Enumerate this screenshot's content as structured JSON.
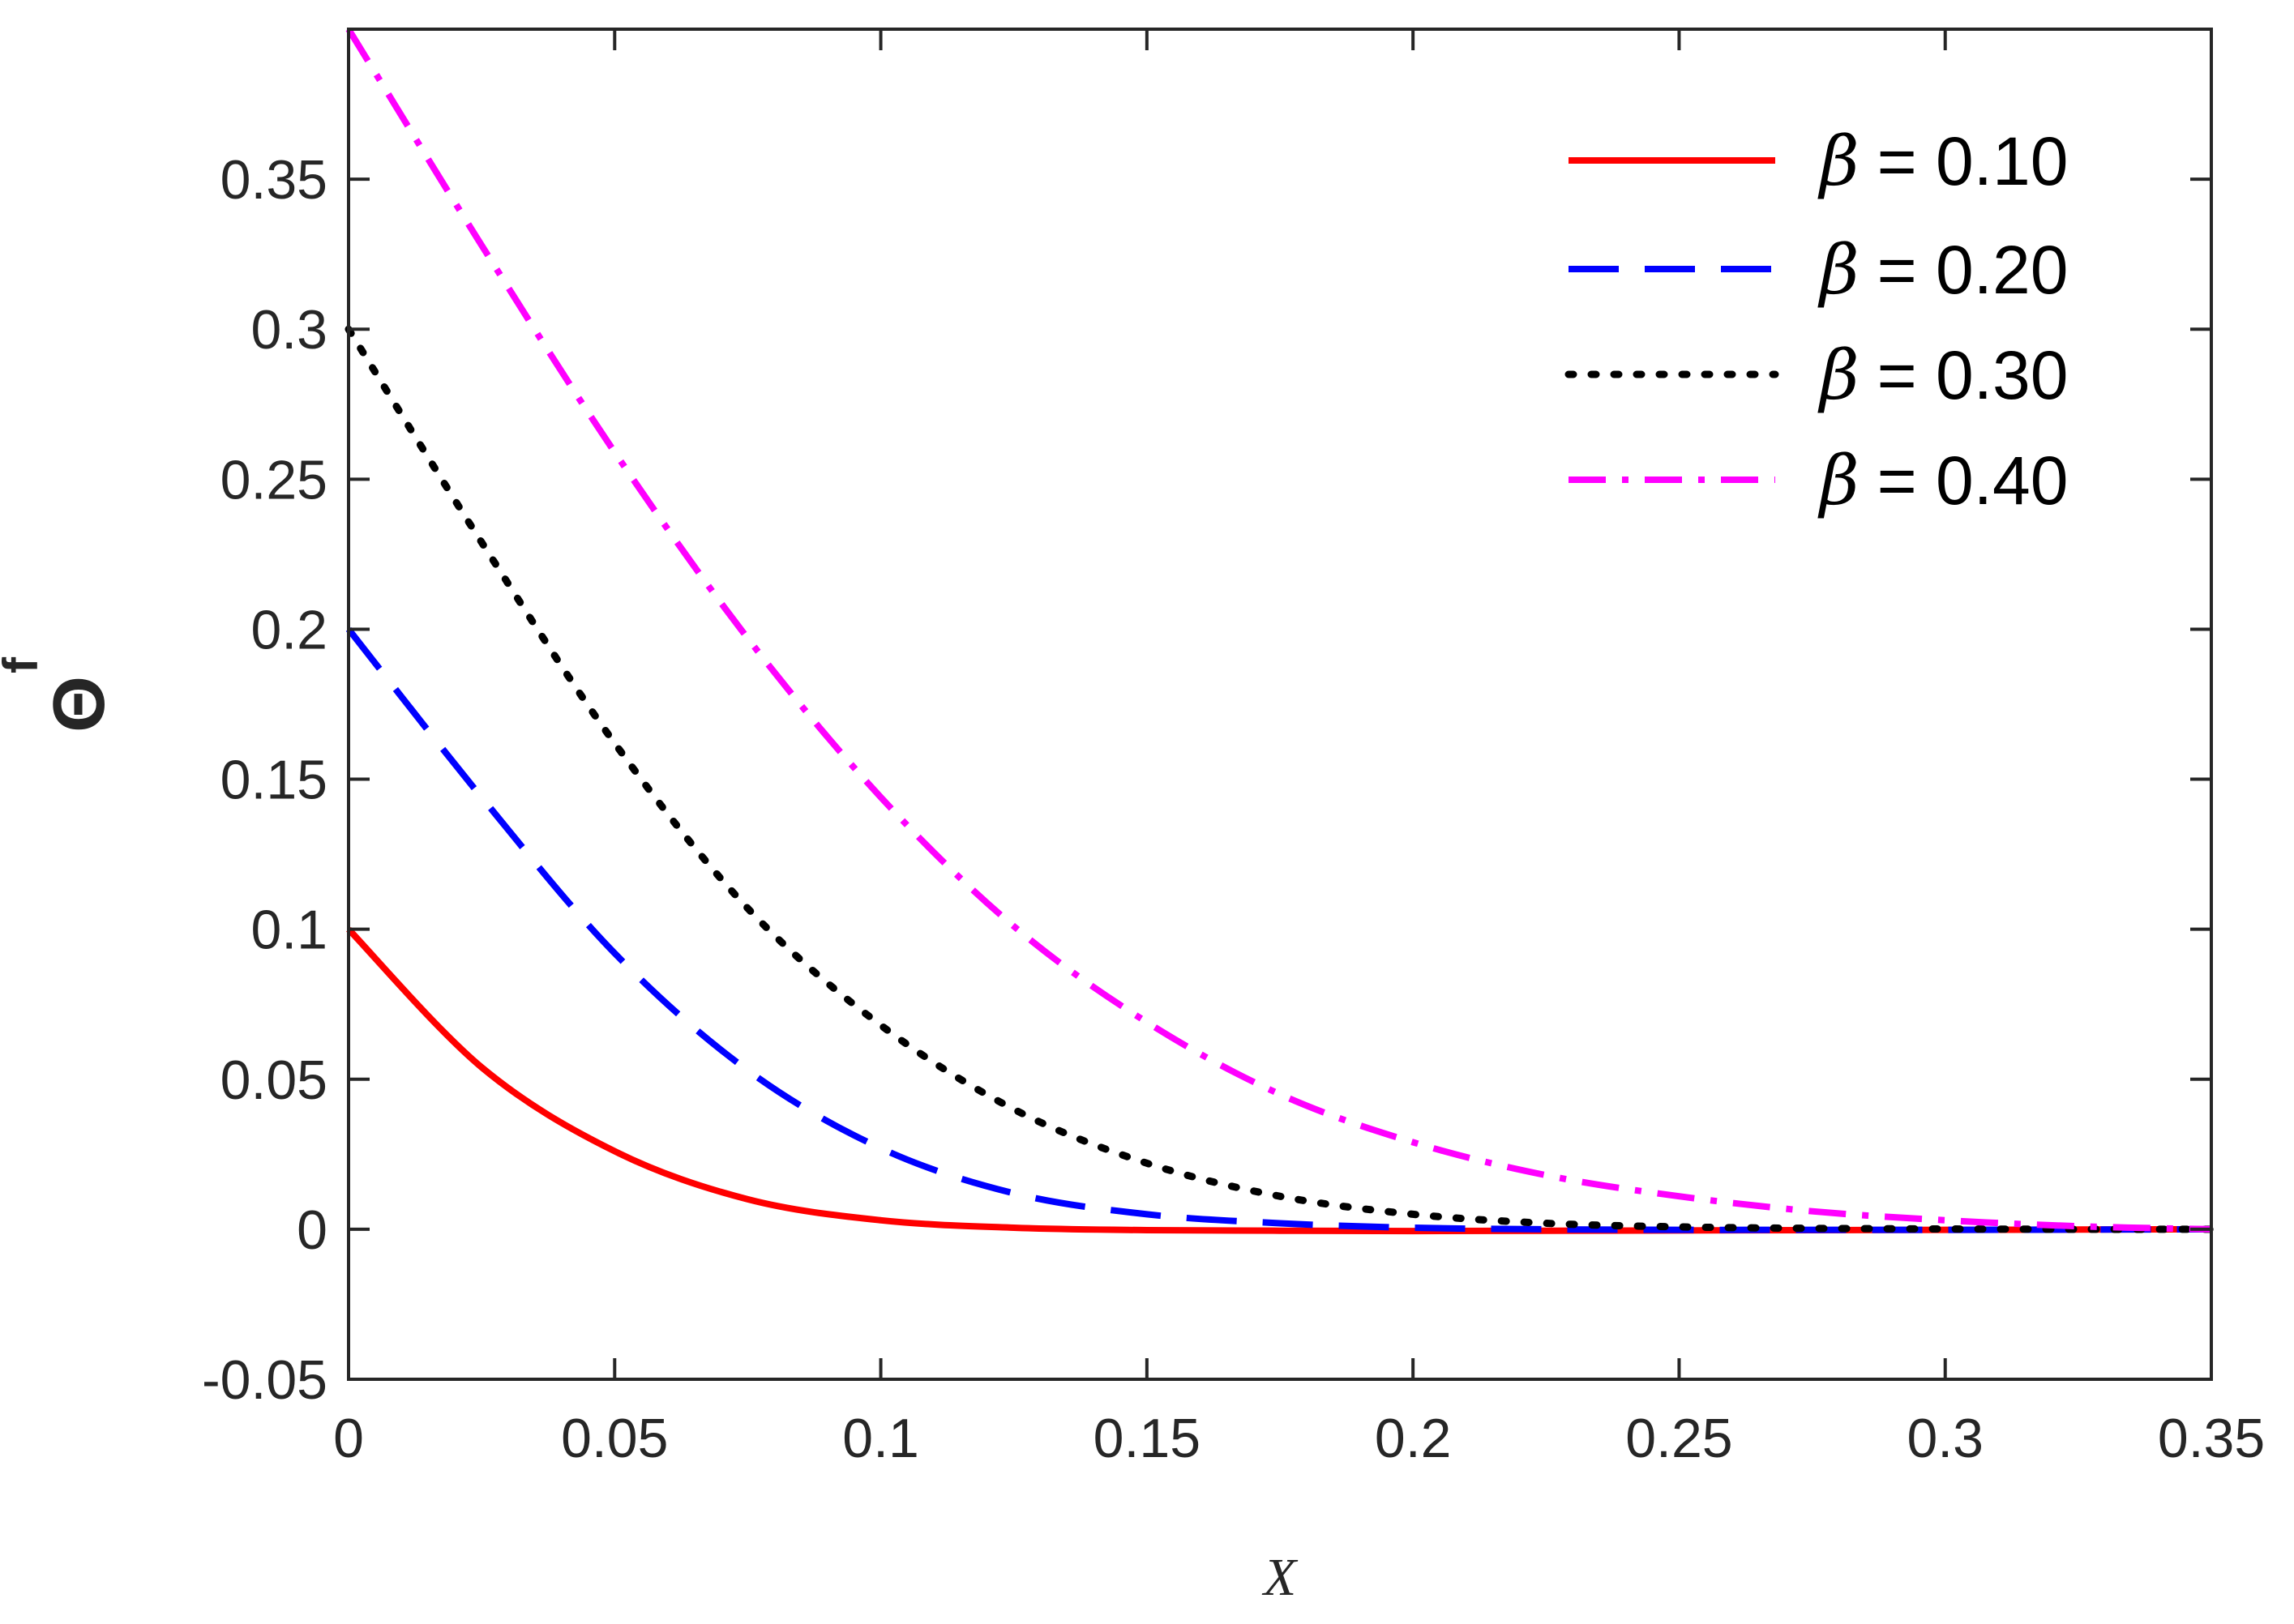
{
  "chart_data": {
    "type": "line",
    "title": "",
    "xlabel": "X",
    "ylabel": "Θ",
    "ylabel_superscript": "f",
    "xlim": [
      0,
      0.35
    ],
    "ylim": [
      -0.05,
      0.4
    ],
    "xticks": [
      0,
      0.05,
      0.1,
      0.15,
      0.2,
      0.25,
      0.3,
      0.35
    ],
    "xtick_labels": [
      "0",
      "0.05",
      "0.1",
      "0.15",
      "0.2",
      "0.25",
      "0.3",
      "0.35"
    ],
    "yticks": [
      -0.05,
      0,
      0.05,
      0.1,
      0.15,
      0.2,
      0.25,
      0.3,
      0.35
    ],
    "ytick_labels": [
      "-0.05",
      "0",
      "0.05",
      "0.1",
      "0.15",
      "0.2",
      "0.25",
      "0.3",
      "0.35"
    ],
    "grid": false,
    "legend_position": "top-right",
    "x": [
      0,
      0.025,
      0.05,
      0.075,
      0.1,
      0.125,
      0.15,
      0.175,
      0.2,
      0.225,
      0.25,
      0.275,
      0.3,
      0.325,
      0.35
    ],
    "series": [
      {
        "name": "β = 0.10",
        "legend_symbol": "β",
        "legend_value": "= 0.10",
        "color": "#ff0000",
        "style": "solid",
        "values": [
          0.1,
          0.054,
          0.026,
          0.01,
          0.003,
          0.0005,
          -0.0003,
          -0.0005,
          -0.0006,
          -0.0005,
          -0.0004,
          -0.0003,
          -0.0002,
          -0.0001,
          0
        ]
      },
      {
        "name": "β = 0.20",
        "legend_symbol": "β",
        "legend_value": "= 0.20",
        "color": "#0000ff",
        "style": "dashed",
        "values": [
          0.2,
          0.144,
          0.092,
          0.053,
          0.027,
          0.012,
          0.005,
          0.002,
          0.0005,
          0,
          -0.0002,
          -0.0002,
          -0.0002,
          -0.0001,
          0
        ]
      },
      {
        "name": "β = 0.30",
        "legend_symbol": "β",
        "legend_value": "= 0.30",
        "color": "#000000",
        "style": "dotted",
        "values": [
          0.3,
          0.229,
          0.162,
          0.107,
          0.068,
          0.04,
          0.022,
          0.011,
          0.005,
          0.002,
          0.0008,
          0.0003,
          0.0001,
          0,
          0
        ]
      },
      {
        "name": "β = 0.40",
        "legend_symbol": "β",
        "legend_value": "= 0.40",
        "color": "#ff00ff",
        "style": "dashdot",
        "values": [
          0.4,
          0.328,
          0.259,
          0.197,
          0.144,
          0.101,
          0.069,
          0.045,
          0.029,
          0.018,
          0.011,
          0.006,
          0.003,
          0.001,
          0
        ]
      }
    ]
  }
}
